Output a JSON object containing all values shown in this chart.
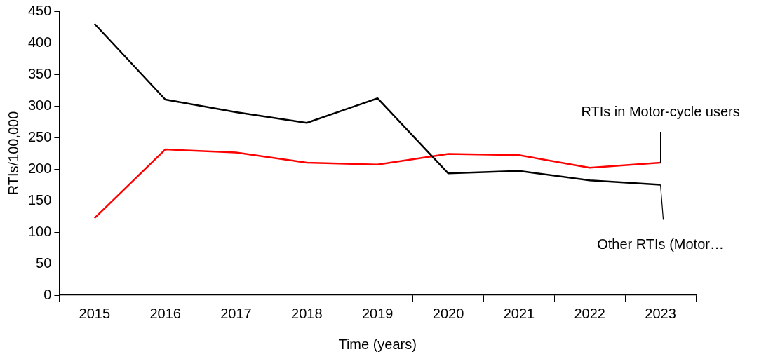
{
  "chart_data": {
    "type": "line",
    "xlabel": "Time (years)",
    "ylabel": "RTIs/100,000",
    "categories": [
      "2015",
      "2016",
      "2017",
      "2018",
      "2019",
      "2020",
      "2021",
      "2022",
      "2023"
    ],
    "series": [
      {
        "name": "Other RTIs (Motor…",
        "color": "#000000",
        "values": [
          430,
          310,
          290,
          273,
          312,
          193,
          197,
          182,
          175
        ]
      },
      {
        "name": "RTIs in Motor-cycle users",
        "color": "#ff0000",
        "values": [
          122,
          231,
          226,
          210,
          207,
          224,
          222,
          202,
          210
        ]
      }
    ],
    "ylim": [
      0,
      450
    ],
    "yticks": [
      0,
      50,
      100,
      150,
      200,
      250,
      300,
      350,
      400,
      450
    ],
    "grid": false,
    "legend": false,
    "marker": "none",
    "line_style": "solid"
  }
}
